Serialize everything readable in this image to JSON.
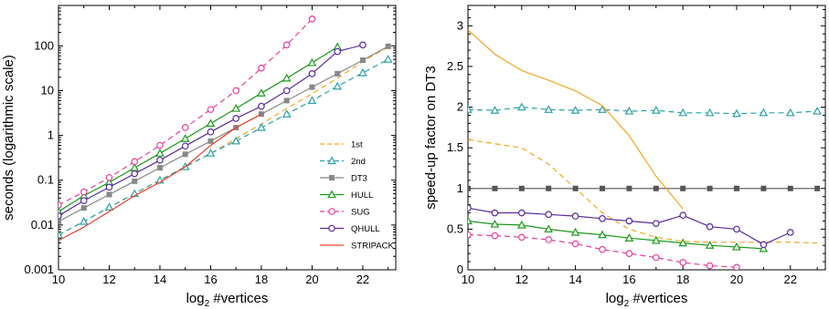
{
  "chart_data": [
    {
      "type": "line",
      "title": "",
      "xlabel": "log2 #vertices",
      "xlabel_parts": {
        "pre": "log",
        "sub": "2",
        "post": " #vertices"
      },
      "ylabel": "seconds (logarithmic scale)",
      "ylog": true,
      "xlim": [
        10,
        23.3
      ],
      "ylim": [
        0.001,
        800
      ],
      "grid": false,
      "legend": "right, center",
      "xticks": [
        10,
        12,
        14,
        16,
        18,
        20,
        22
      ],
      "yticks": [
        0.001,
        0.01,
        0.1,
        1,
        10,
        100
      ],
      "ytick_labels": [
        "0.001",
        "0.01",
        "0.1",
        "1",
        "10",
        "100"
      ],
      "series": [
        {
          "name": "1st",
          "color": "#f5a623",
          "dash": "6,4",
          "marker": "none",
          "x": [
            10,
            11,
            12,
            13,
            14,
            15,
            16,
            17,
            18,
            19,
            20,
            21,
            22,
            23
          ],
          "y": [
            0.006,
            0.012,
            0.025,
            0.05,
            0.1,
            0.2,
            0.4,
            0.85,
            1.8,
            4,
            8.5,
            19,
            45,
            95
          ]
        },
        {
          "name": "2nd",
          "color": "#2aa1a8",
          "dash": "6,4",
          "marker": "triangle",
          "x": [
            10,
            11,
            12,
            13,
            14,
            15,
            16,
            17,
            18,
            19,
            20,
            21,
            22,
            23
          ],
          "y": [
            0.006,
            0.012,
            0.025,
            0.05,
            0.1,
            0.2,
            0.4,
            0.75,
            1.5,
            3,
            6,
            12.5,
            25,
            50
          ]
        },
        {
          "name": "DT3",
          "color": "#888888",
          "dash": "",
          "marker": "square",
          "x": [
            10,
            11,
            12,
            13,
            14,
            15,
            16,
            17,
            18,
            19,
            20,
            21,
            22,
            23
          ],
          "y": [
            0.012,
            0.024,
            0.048,
            0.095,
            0.19,
            0.38,
            0.75,
            1.5,
            3,
            6,
            12,
            24,
            48,
            98
          ]
        },
        {
          "name": "HULL",
          "color": "#1a9a1a",
          "dash": "",
          "marker": "triangle",
          "x": [
            10,
            11,
            12,
            13,
            14,
            15,
            16,
            17,
            18,
            19,
            20,
            21
          ],
          "y": [
            0.02,
            0.045,
            0.09,
            0.19,
            0.4,
            0.85,
            1.85,
            4,
            8.8,
            19,
            42,
            95
          ]
        },
        {
          "name": "SUG",
          "color": "#e6409f",
          "dash": "6,4",
          "marker": "circle",
          "x": [
            10,
            11,
            12,
            13,
            14,
            15,
            16,
            17,
            18,
            19,
            20
          ],
          "y": [
            0.028,
            0.055,
            0.115,
            0.26,
            0.6,
            1.5,
            3.8,
            10,
            32,
            105,
            400
          ]
        },
        {
          "name": "QHULL",
          "color": "#5a2a9e",
          "dash": "",
          "marker": "circle",
          "x": [
            10,
            11,
            12,
            13,
            14,
            15,
            16,
            17,
            18,
            19,
            20,
            21,
            22
          ],
          "y": [
            0.016,
            0.035,
            0.07,
            0.14,
            0.28,
            0.58,
            1.2,
            2.4,
            4.5,
            10,
            24,
            75,
            105
          ]
        },
        {
          "name": "STRIPACK",
          "color": "#e8402a",
          "dash": "",
          "marker": "none",
          "x": [
            10,
            11,
            12,
            13,
            14,
            15,
            16,
            17,
            18
          ],
          "y": [
            0.0045,
            0.009,
            0.02,
            0.045,
            0.09,
            0.2,
            0.6,
            1.5,
            3
          ]
        }
      ]
    },
    {
      "type": "line",
      "title": "",
      "xlabel": "log2 #vertices",
      "xlabel_parts": {
        "pre": "log",
        "sub": "2",
        "post": " #vertices"
      },
      "ylabel": "speed-up factor on DT3",
      "ylog": false,
      "xlim": [
        10,
        23.3
      ],
      "ylim": [
        0,
        3.25
      ],
      "grid": false,
      "legend": "none",
      "xticks": [
        10,
        12,
        14,
        16,
        18,
        20,
        22
      ],
      "yticks": [
        0,
        0.5,
        1,
        1.5,
        2,
        2.5,
        3
      ],
      "ytick_labels": [
        "0",
        "0.5",
        "1",
        "1.5",
        "2",
        "2.5",
        "3"
      ],
      "series": [
        {
          "name": "1st",
          "color": "#f5a623",
          "dash": "6,4",
          "marker": "none",
          "x": [
            10,
            11,
            12,
            13,
            14,
            15,
            16,
            17,
            18,
            19,
            20,
            21,
            22,
            23
          ],
          "y": [
            1.6,
            1.55,
            1.5,
            1.3,
            1.0,
            0.7,
            0.5,
            0.4,
            0.35,
            0.34,
            0.34,
            0.34,
            0.34,
            0.33
          ]
        },
        {
          "name": "2nd",
          "color": "#2aa1a8",
          "dash": "6,4",
          "marker": "triangle",
          "x": [
            10,
            11,
            12,
            13,
            14,
            15,
            16,
            17,
            18,
            19,
            20,
            21,
            22,
            23
          ],
          "y": [
            1.97,
            1.96,
            2.0,
            1.97,
            1.96,
            1.97,
            1.95,
            1.96,
            1.93,
            1.93,
            1.92,
            1.93,
            1.93,
            1.95
          ]
        },
        {
          "name": "DT3",
          "color": "#555555",
          "dash": "",
          "marker": "square",
          "x": [
            10,
            11,
            12,
            13,
            14,
            15,
            16,
            17,
            18,
            19,
            20,
            21,
            22,
            23
          ],
          "y": [
            1,
            1,
            1,
            1,
            1,
            1,
            1,
            1,
            1,
            1,
            1,
            1,
            1,
            1
          ]
        },
        {
          "name": "HULL",
          "color": "#1a9a1a",
          "dash": "",
          "marker": "triangle",
          "x": [
            10,
            11,
            12,
            13,
            14,
            15,
            16,
            17,
            18,
            19,
            20,
            21
          ],
          "y": [
            0.6,
            0.56,
            0.55,
            0.5,
            0.46,
            0.43,
            0.39,
            0.36,
            0.33,
            0.3,
            0.28,
            0.26
          ]
        },
        {
          "name": "SUG",
          "color": "#e6409f",
          "dash": "6,4",
          "marker": "circle",
          "x": [
            10,
            11,
            12,
            13,
            14,
            15,
            16,
            17,
            18,
            19,
            20
          ],
          "y": [
            0.43,
            0.42,
            0.4,
            0.37,
            0.32,
            0.25,
            0.2,
            0.15,
            0.09,
            0.05,
            0.03
          ]
        },
        {
          "name": "QHULL",
          "color": "#5a2a9e",
          "dash": "",
          "marker": "circle",
          "x": [
            10,
            11,
            12,
            13,
            14,
            15,
            16,
            17,
            18,
            19,
            20,
            21,
            22
          ],
          "y": [
            0.76,
            0.7,
            0.7,
            0.68,
            0.66,
            0.63,
            0.6,
            0.57,
            0.67,
            0.53,
            0.5,
            0.31,
            0.46
          ]
        },
        {
          "name": "STRIPACK",
          "color": "#f5a623",
          "dash": "",
          "marker": "none",
          "x": [
            10,
            11,
            12,
            13,
            14,
            15,
            16,
            17,
            18
          ],
          "y": [
            2.95,
            2.65,
            2.45,
            2.33,
            2.2,
            2.02,
            1.65,
            1.15,
            0.75
          ]
        }
      ]
    }
  ]
}
